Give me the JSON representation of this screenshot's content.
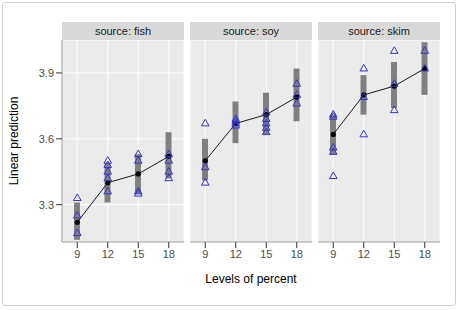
{
  "chart_data": {
    "type": "line",
    "x_label": "Levels of percent",
    "y_label": "Linear prediction",
    "categories": [
      "9",
      "12",
      "15",
      "18"
    ],
    "ylim": [
      3.13,
      4.05
    ],
    "yticks": [
      3.3,
      3.6,
      3.9
    ],
    "grid": true,
    "panels": [
      {
        "title": "source: fish",
        "values": [
          3.22,
          3.4,
          3.44,
          3.52
        ],
        "lower": [
          3.14,
          3.31,
          3.35,
          3.42
        ],
        "upper": [
          3.31,
          3.49,
          3.53,
          3.63
        ],
        "observations": [
          [
            3.33,
            3.25,
            3.17
          ],
          [
            3.5,
            3.48,
            3.45,
            3.42,
            3.36
          ],
          [
            3.53,
            3.5,
            3.36,
            3.35
          ],
          [
            3.53,
            3.5,
            3.45,
            3.42
          ]
        ]
      },
      {
        "title": "source: soy",
        "values": [
          3.5,
          3.67,
          3.71,
          3.79
        ],
        "lower": [
          3.41,
          3.58,
          3.62,
          3.68
        ],
        "upper": [
          3.6,
          3.77,
          3.81,
          3.92
        ],
        "observations": [
          [
            3.67,
            3.47,
            3.4
          ],
          [
            3.69,
            3.68,
            3.67,
            3.66
          ],
          [
            3.72,
            3.69,
            3.67,
            3.65,
            3.63
          ],
          [
            3.85,
            3.8,
            3.76
          ]
        ]
      },
      {
        "title": "source: skim",
        "values": [
          3.62,
          3.8,
          3.84,
          3.92
        ],
        "lower": [
          3.53,
          3.71,
          3.74,
          3.8
        ],
        "upper": [
          3.71,
          3.89,
          3.95,
          4.04
        ],
        "observations": [
          [
            3.71,
            3.7,
            3.56,
            3.54,
            3.43
          ],
          [
            3.92,
            3.79,
            3.62
          ],
          [
            4.0,
            3.85,
            3.73
          ],
          [
            4.0,
            3.92
          ]
        ]
      }
    ]
  }
}
